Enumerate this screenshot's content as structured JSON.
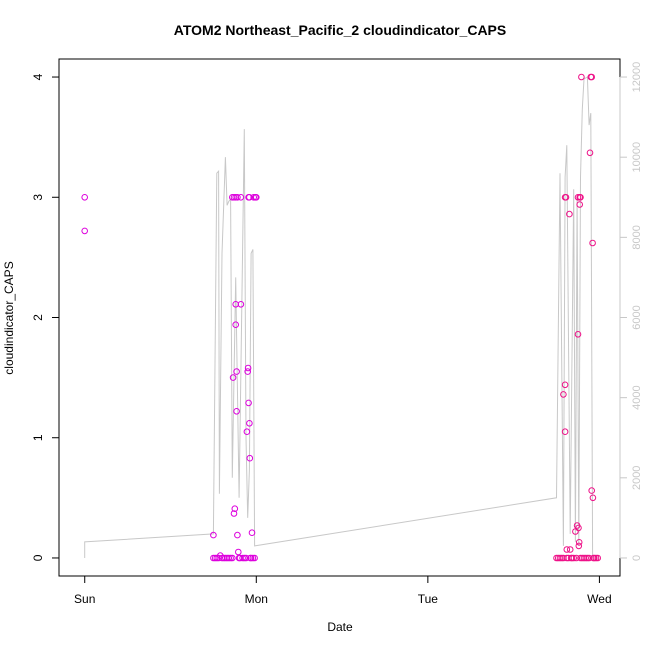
{
  "chart_data": {
    "type": "scatter",
    "title": "ATOM2 Northeast_Pacific_2 cloudindicator_CAPS",
    "xlabel": "Date",
    "ylabel": "cloudindicator_CAPS",
    "x_unit": "days",
    "x_ticks": [
      {
        "value": 0,
        "label": "Sun"
      },
      {
        "value": 1,
        "label": "Mon"
      },
      {
        "value": 2,
        "label": "Tue"
      },
      {
        "value": 3,
        "label": "Wed"
      }
    ],
    "xlim": [
      -0.15,
      3.12
    ],
    "ylim": [
      -0.15,
      4.15
    ],
    "y_ticks": [
      0,
      1,
      2,
      3,
      4
    ],
    "y2_ticks": [
      0,
      2000,
      4000,
      6000,
      8000,
      10000,
      12000
    ],
    "y2lim": [
      -450,
      12450
    ],
    "colors": {
      "line": "#c8c8c8",
      "axis2": "#c8c8c8",
      "points_a": "#dd00dd",
      "points_b": "#ee1188"
    },
    "series": [
      {
        "color": "#dd00dd",
        "marker": "circle-open",
        "points": [
          [
            0.0,
            3.0
          ],
          [
            0.0,
            2.72
          ],
          [
            0.75,
            0.19
          ],
          [
            0.75,
            0.0
          ],
          [
            0.76,
            0.0
          ],
          [
            0.77,
            0.0
          ],
          [
            0.78,
            0.0
          ],
          [
            0.79,
            0.02
          ],
          [
            0.8,
            0.0
          ],
          [
            0.81,
            0.0
          ],
          [
            0.82,
            0.0
          ],
          [
            0.83,
            0.0
          ],
          [
            0.84,
            0.0
          ],
          [
            0.85,
            0.0
          ],
          [
            0.86,
            0.0
          ],
          [
            0.86,
            3.0
          ],
          [
            0.87,
            3.0
          ],
          [
            0.88,
            3.0
          ],
          [
            0.89,
            3.0
          ],
          [
            0.865,
            1.5
          ],
          [
            0.87,
            0.37
          ],
          [
            0.875,
            0.41
          ],
          [
            0.88,
            2.11
          ],
          [
            0.88,
            1.94
          ],
          [
            0.885,
            1.55
          ],
          [
            0.885,
            1.22
          ],
          [
            0.89,
            0.19
          ],
          [
            0.895,
            0.05
          ],
          [
            0.9,
            0.0
          ],
          [
            0.905,
            0.0
          ],
          [
            0.91,
            2.11
          ],
          [
            0.91,
            3.0
          ],
          [
            0.92,
            0.0
          ],
          [
            0.93,
            0.0
          ],
          [
            0.94,
            0.0
          ],
          [
            0.945,
            1.05
          ],
          [
            0.95,
            1.55
          ],
          [
            0.952,
            1.58
          ],
          [
            0.955,
            1.29
          ],
          [
            0.955,
            3.0
          ],
          [
            0.96,
            3.0
          ],
          [
            0.96,
            1.12
          ],
          [
            0.962,
            0.83
          ],
          [
            0.965,
            0.0
          ],
          [
            0.97,
            0.0
          ],
          [
            0.975,
            0.21
          ],
          [
            0.98,
            0.0
          ],
          [
            0.985,
            3.0
          ],
          [
            0.99,
            0.0
          ],
          [
            0.995,
            3.0
          ],
          [
            1.0,
            3.0
          ]
        ]
      },
      {
        "color": "#ee1188",
        "marker": "circle-open",
        "points": [
          [
            2.75,
            0.0
          ],
          [
            2.76,
            0.0
          ],
          [
            2.77,
            0.0
          ],
          [
            2.78,
            0.0
          ],
          [
            2.79,
            0.0
          ],
          [
            2.79,
            1.36
          ],
          [
            2.8,
            1.05
          ],
          [
            2.8,
            1.44
          ],
          [
            2.8,
            3.0
          ],
          [
            2.805,
            3.0
          ],
          [
            2.81,
            0.07
          ],
          [
            2.81,
            0.0
          ],
          [
            2.82,
            0.0
          ],
          [
            2.825,
            2.86
          ],
          [
            2.83,
            0.07
          ],
          [
            2.835,
            0.0
          ],
          [
            2.84,
            0.0
          ],
          [
            2.85,
            0.0
          ],
          [
            2.86,
            0.22
          ],
          [
            2.865,
            0.0
          ],
          [
            2.87,
            0.27
          ],
          [
            2.875,
            1.86
          ],
          [
            2.875,
            3.0
          ],
          [
            2.878,
            0.25
          ],
          [
            2.88,
            0.1
          ],
          [
            2.882,
            0.13
          ],
          [
            2.885,
            2.94
          ],
          [
            2.885,
            3.0
          ],
          [
            2.89,
            3.0
          ],
          [
            2.89,
            0.0
          ],
          [
            2.895,
            4.0
          ],
          [
            2.9,
            0.0
          ],
          [
            2.91,
            0.0
          ],
          [
            2.92,
            0.0
          ],
          [
            2.93,
            0.0
          ],
          [
            2.94,
            0.0
          ],
          [
            2.945,
            3.37
          ],
          [
            2.95,
            4.0
          ],
          [
            2.955,
            4.0
          ],
          [
            2.955,
            0.56
          ],
          [
            2.96,
            2.62
          ],
          [
            2.962,
            0.5
          ],
          [
            2.965,
            0.0
          ],
          [
            2.97,
            0.0
          ],
          [
            2.98,
            0.0
          ],
          [
            2.99,
            0.0
          ]
        ]
      }
    ],
    "line_series": {
      "axis": "right",
      "color": "#c8c8c8",
      "points": [
        [
          0.0,
          0
        ],
        [
          0.0,
          400
        ],
        [
          0.75,
          600
        ],
        [
          0.77,
          9600
        ],
        [
          0.78,
          9650
        ],
        [
          0.785,
          1600
        ],
        [
          0.8,
          7600
        ],
        [
          0.82,
          10000
        ],
        [
          0.83,
          8800
        ],
        [
          0.84,
          8900
        ],
        [
          0.85,
          8950
        ],
        [
          0.86,
          2000
        ],
        [
          0.88,
          7000
        ],
        [
          0.9,
          1500
        ],
        [
          0.93,
          10700
        ],
        [
          0.94,
          3000
        ],
        [
          0.95,
          1000
        ],
        [
          0.96,
          2200
        ],
        [
          0.97,
          7600
        ],
        [
          0.98,
          7700
        ],
        [
          0.99,
          300
        ],
        [
          2.75,
          1500
        ],
        [
          2.77,
          9600
        ],
        [
          2.79,
          300
        ],
        [
          2.8,
          9500
        ],
        [
          2.81,
          10300
        ],
        [
          2.83,
          600
        ],
        [
          2.85,
          9200
        ],
        [
          2.86,
          400
        ],
        [
          2.87,
          9000
        ],
        [
          2.88,
          300
        ],
        [
          2.89,
          9500
        ],
        [
          2.9,
          11200
        ],
        [
          2.91,
          11950
        ],
        [
          2.93,
          12000
        ],
        [
          2.94,
          10800
        ],
        [
          2.95,
          11100
        ],
        [
          2.96,
          0
        ]
      ]
    }
  }
}
